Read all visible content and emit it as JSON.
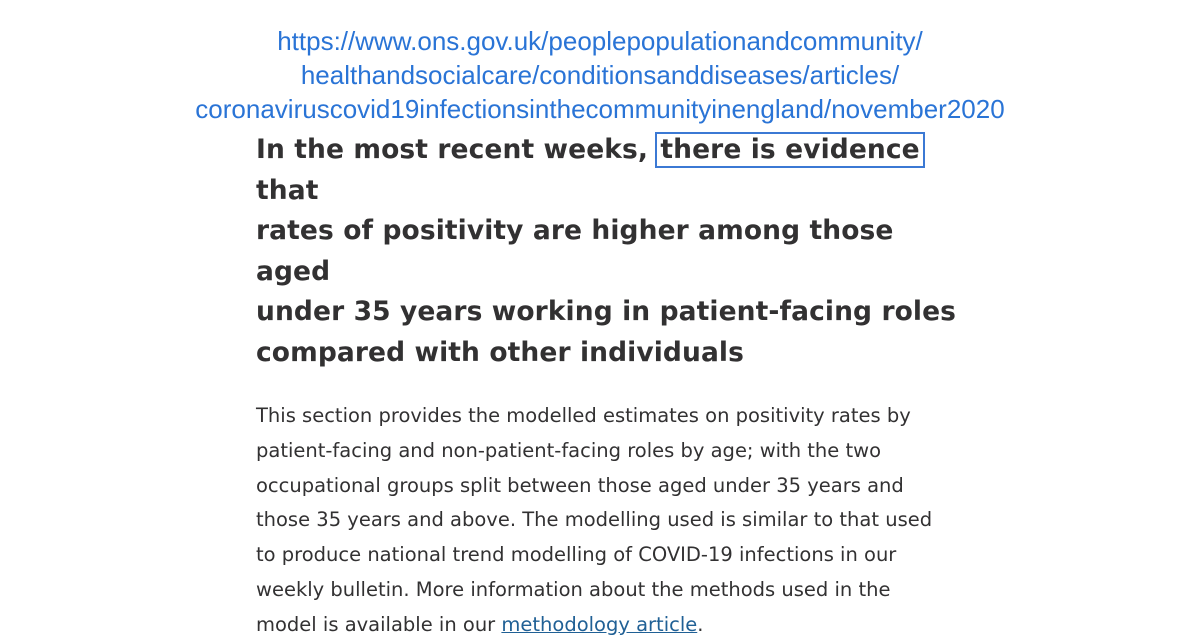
{
  "source_url": {
    "lines": [
      "https://www.ons.gov.uk/peoplepopulationandcommunity/",
      "healthandsocialcare/conditionsanddiseases/articles/",
      "coronaviruscovid19infectionsinthecommunityinengland/november2020"
    ]
  },
  "article": {
    "heading": {
      "before": "In the most recent weeks, ",
      "highlighted": "there is evidence",
      "line1_after": " that",
      "line2": "rates of positivity are higher among those aged",
      "line3": "under 35 years working in patient-facing roles",
      "line4": "compared with other individuals"
    },
    "paragraph": {
      "lines": [
        "This section provides the modelled estimates on positivity rates by",
        "patient-facing and non-patient-facing roles by age; with the two",
        "occupational groups split between those aged under 35 years and",
        "those 35 years and above. The modelling used is similar to that used",
        "to produce national trend modelling of COVID-19 infections in our",
        "weekly bulletin. More information about the methods used in the"
      ],
      "last_line_before_link": "model is available in our ",
      "link_text": "methodology article",
      "last_line_after_link": "."
    },
    "colors": {
      "url": "#2a74d6",
      "highlight_border": "#3b79d4",
      "text": "#323132",
      "link": "#206095"
    }
  }
}
